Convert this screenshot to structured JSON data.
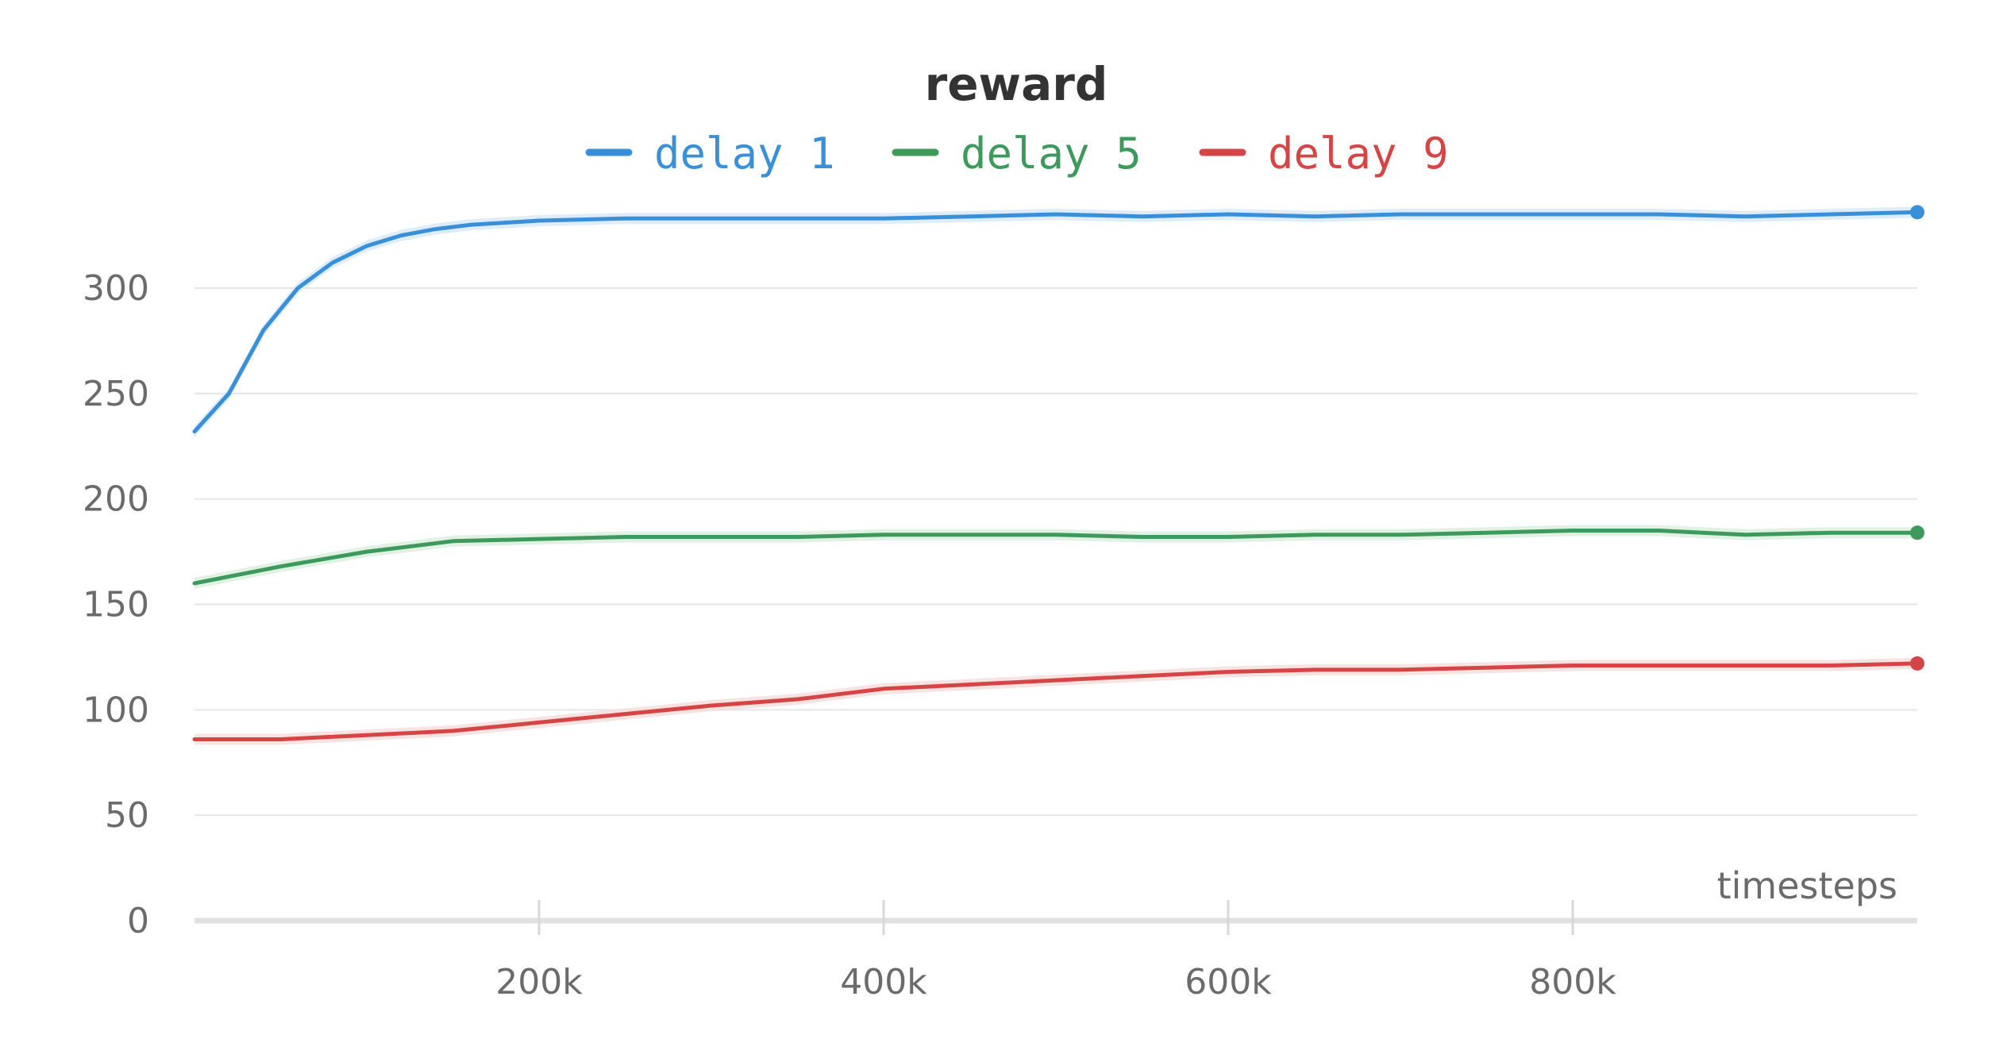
{
  "chart_data": {
    "type": "line",
    "title": "reward",
    "xlabel": "timesteps",
    "ylabel": "",
    "xlim": [
      0,
      1000000
    ],
    "ylim": [
      0,
      350
    ],
    "grid": true,
    "legend": "top-center",
    "x_ticks": [
      {
        "value": 200000,
        "label": "200k"
      },
      {
        "value": 400000,
        "label": "400k"
      },
      {
        "value": 600000,
        "label": "600k"
      },
      {
        "value": 800000,
        "label": "800k"
      }
    ],
    "y_ticks": [
      {
        "value": 0,
        "label": "0"
      },
      {
        "value": 50,
        "label": "50"
      },
      {
        "value": 100,
        "label": "100"
      },
      {
        "value": 150,
        "label": "150"
      },
      {
        "value": 200,
        "label": "200"
      },
      {
        "value": 250,
        "label": "250"
      },
      {
        "value": 300,
        "label": "300"
      }
    ],
    "series": [
      {
        "name": "delay 1",
        "color": "#3a8fd9",
        "band_color": "#d6e9f8",
        "x": [
          0,
          20000,
          40000,
          60000,
          80000,
          100000,
          120000,
          140000,
          160000,
          180000,
          200000,
          250000,
          300000,
          350000,
          400000,
          450000,
          500000,
          550000,
          600000,
          650000,
          700000,
          750000,
          800000,
          850000,
          900000,
          950000,
          1000000
        ],
        "values": [
          232,
          250,
          280,
          300,
          312,
          320,
          325,
          328,
          330,
          331,
          332,
          333,
          333,
          333,
          333,
          334,
          335,
          334,
          335,
          334,
          335,
          335,
          335,
          335,
          334,
          335,
          336
        ]
      },
      {
        "name": "delay 5",
        "color": "#3d9a5c",
        "band_color": "#d9efdf",
        "x": [
          0,
          50000,
          100000,
          150000,
          200000,
          250000,
          300000,
          350000,
          400000,
          450000,
          500000,
          550000,
          600000,
          650000,
          700000,
          750000,
          800000,
          850000,
          900000,
          950000,
          1000000
        ],
        "values": [
          160,
          168,
          175,
          180,
          181,
          182,
          182,
          182,
          183,
          183,
          183,
          182,
          182,
          183,
          183,
          184,
          185,
          185,
          183,
          184,
          184
        ]
      },
      {
        "name": "delay 9",
        "color": "#d64545",
        "band_color": "#f6dcdc",
        "x": [
          0,
          50000,
          100000,
          150000,
          200000,
          250000,
          300000,
          350000,
          400000,
          450000,
          500000,
          550000,
          600000,
          650000,
          700000,
          750000,
          800000,
          850000,
          900000,
          950000,
          1000000
        ],
        "values": [
          86,
          86,
          88,
          90,
          94,
          98,
          102,
          105,
          110,
          112,
          114,
          116,
          118,
          119,
          119,
          120,
          121,
          121,
          121,
          121,
          122
        ]
      }
    ]
  }
}
